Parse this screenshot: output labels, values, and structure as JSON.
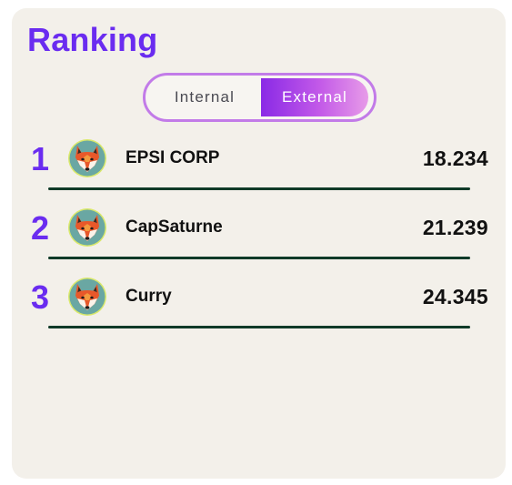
{
  "ranking": {
    "title": "Ranking",
    "tabs": {
      "internal_label": "Internal",
      "external_label": "External",
      "selected": "External"
    },
    "avatar_icon": "fox-avatar-icon",
    "colors": {
      "accent": "#6a2cf0",
      "toggle_border": "#c27be8",
      "divider": "#0f3a28",
      "avatar_bg": "#6aa7a3",
      "avatar_ring": "#d9e86a"
    },
    "entries": [
      {
        "rank": "1",
        "name": "EPSI CORP",
        "score": "18.234"
      },
      {
        "rank": "2",
        "name": "CapSaturne",
        "score": "21.239"
      },
      {
        "rank": "3",
        "name": "Curry",
        "score": "24.345"
      }
    ]
  }
}
